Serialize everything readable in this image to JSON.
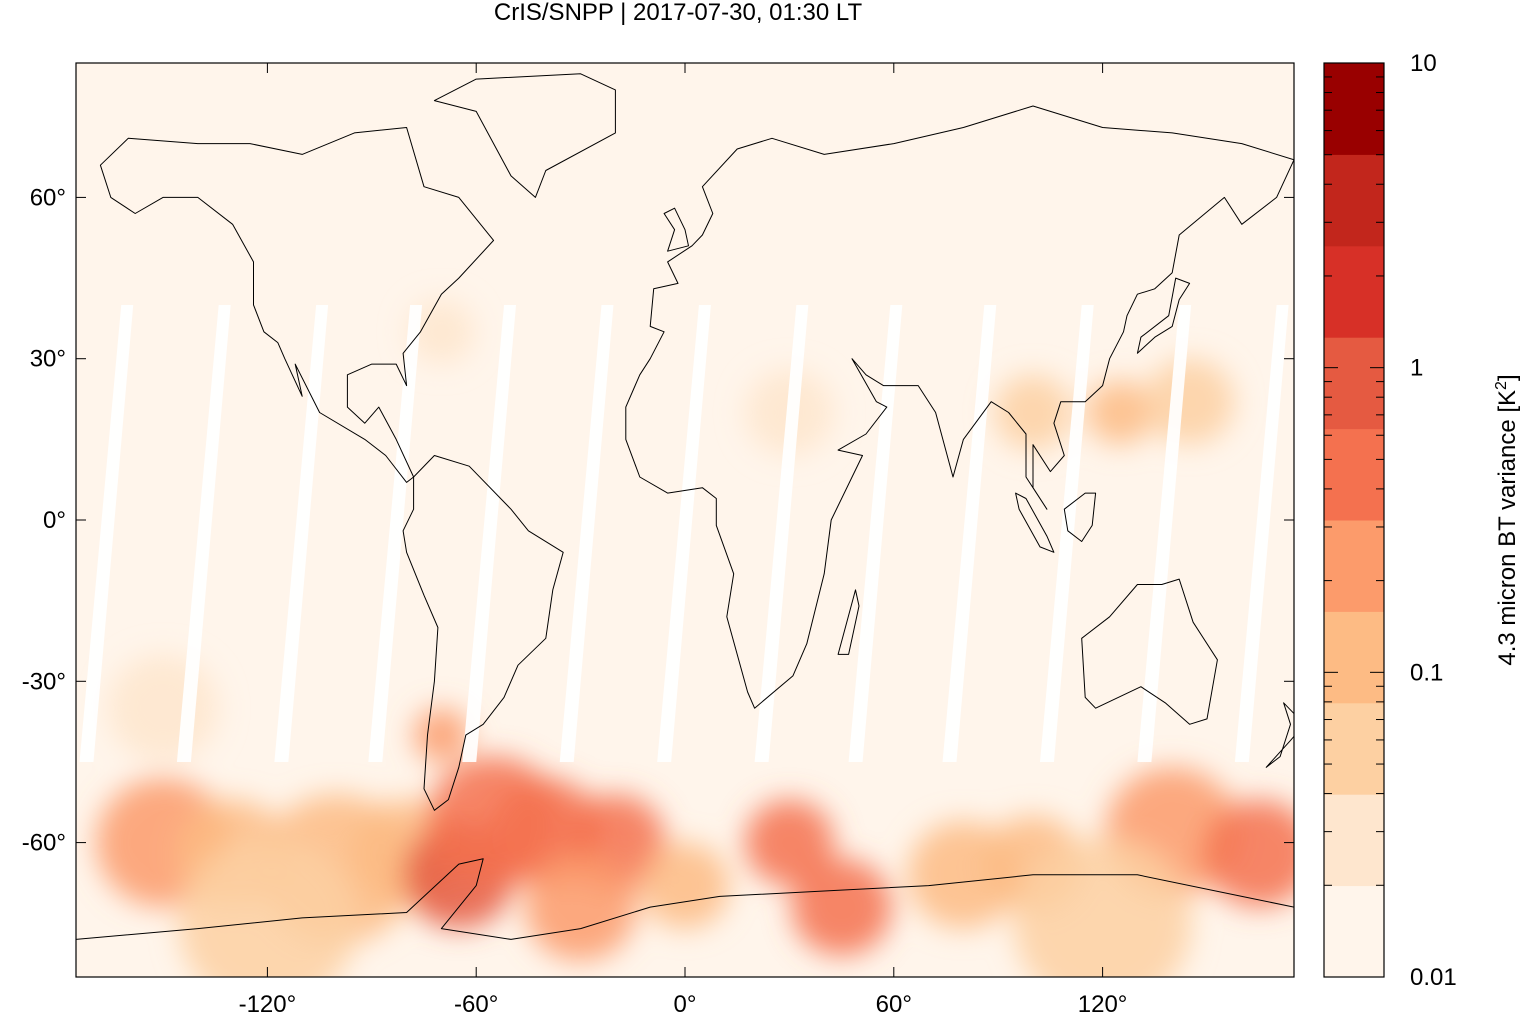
{
  "title": "CrIS/SNPP | 2017-07-30, 01:30 LT",
  "map": {
    "lon_range": [
      -175,
      175
    ],
    "lat_range": [
      -85,
      85
    ],
    "x_ticks": [
      {
        "value": -120,
        "label": "-120°"
      },
      {
        "value": -60,
        "label": "-60°"
      },
      {
        "value": 0,
        "label": "0°"
      },
      {
        "value": 60,
        "label": "60°"
      },
      {
        "value": 120,
        "label": "120°"
      }
    ],
    "y_ticks": [
      {
        "value": 60,
        "label": "60°"
      },
      {
        "value": 30,
        "label": "30°"
      },
      {
        "value": 0,
        "label": "0°"
      },
      {
        "value": -30,
        "label": "-30°"
      },
      {
        "value": -60,
        "label": "-60°"
      }
    ],
    "swath_gap_lons": [
      -168,
      -140,
      -112,
      -85,
      -58,
      -30,
      -2,
      26,
      53,
      80,
      108,
      136,
      164
    ],
    "blobs": [
      {
        "lon": -150,
        "lat": -60,
        "r": 12,
        "level": 4
      },
      {
        "lon": -130,
        "lat": -62,
        "r": 10,
        "level": 3
      },
      {
        "lon": -100,
        "lat": -65,
        "r": 14,
        "level": 3
      },
      {
        "lon": -80,
        "lat": -62,
        "r": 10,
        "level": 3
      },
      {
        "lon": -65,
        "lat": -66,
        "r": 10,
        "level": 6
      },
      {
        "lon": -55,
        "lat": -56,
        "r": 12,
        "level": 5
      },
      {
        "lon": -40,
        "lat": -58,
        "r": 10,
        "level": 5
      },
      {
        "lon": -20,
        "lat": -60,
        "r": 9,
        "level": 5
      },
      {
        "lon": -30,
        "lat": -72,
        "r": 10,
        "level": 4
      },
      {
        "lon": 0,
        "lat": -68,
        "r": 8,
        "level": 3
      },
      {
        "lon": 30,
        "lat": -60,
        "r": 8,
        "level": 5
      },
      {
        "lon": 45,
        "lat": -72,
        "r": 9,
        "level": 5
      },
      {
        "lon": 80,
        "lat": -66,
        "r": 10,
        "level": 3
      },
      {
        "lon": 100,
        "lat": -64,
        "r": 9,
        "level": 3
      },
      {
        "lon": 140,
        "lat": -58,
        "r": 12,
        "level": 4
      },
      {
        "lon": 165,
        "lat": -62,
        "r": 10,
        "level": 5
      },
      {
        "lon": -120,
        "lat": -75,
        "r": 16,
        "level": 2
      },
      {
        "lon": 120,
        "lat": -75,
        "r": 16,
        "level": 2
      },
      {
        "lon": -70,
        "lat": -40,
        "r": 5,
        "level": 4
      },
      {
        "lon": 125,
        "lat": 20,
        "r": 6,
        "level": 3
      },
      {
        "lon": 145,
        "lat": 22,
        "r": 8,
        "level": 2
      },
      {
        "lon": 100,
        "lat": 20,
        "r": 7,
        "level": 2
      },
      {
        "lon": -70,
        "lat": 35,
        "r": 6,
        "level": 1
      },
      {
        "lon": 30,
        "lat": 20,
        "r": 8,
        "level": 1
      },
      {
        "lon": -150,
        "lat": -35,
        "r": 10,
        "level": 1
      }
    ],
    "continents": [
      {
        "name": "north-america",
        "points": [
          [
            -165,
            60
          ],
          [
            -168,
            66
          ],
          [
            -160,
            71
          ],
          [
            -140,
            70
          ],
          [
            -125,
            70
          ],
          [
            -110,
            68
          ],
          [
            -95,
            72
          ],
          [
            -80,
            73
          ],
          [
            -75,
            62
          ],
          [
            -65,
            60
          ],
          [
            -55,
            52
          ],
          [
            -65,
            45
          ],
          [
            -70,
            42
          ],
          [
            -76,
            35
          ],
          [
            -81,
            31
          ],
          [
            -80,
            25
          ],
          [
            -83,
            29
          ],
          [
            -90,
            29
          ],
          [
            -97,
            27
          ],
          [
            -97,
            21
          ],
          [
            -92,
            18
          ],
          [
            -88,
            21
          ],
          [
            -83,
            15
          ],
          [
            -78,
            8
          ],
          [
            -80,
            7
          ],
          [
            -86,
            12
          ],
          [
            -92,
            15
          ],
          [
            -105,
            20
          ],
          [
            -112,
            29
          ],
          [
            -110,
            23
          ],
          [
            -115,
            30
          ],
          [
            -117,
            33
          ],
          [
            -121,
            35
          ],
          [
            -124,
            40
          ],
          [
            -124,
            48
          ],
          [
            -130,
            55
          ],
          [
            -140,
            60
          ],
          [
            -150,
            60
          ],
          [
            -158,
            57
          ],
          [
            -165,
            60
          ]
        ]
      },
      {
        "name": "greenland",
        "points": [
          [
            -72,
            78
          ],
          [
            -60,
            82
          ],
          [
            -30,
            83
          ],
          [
            -20,
            80
          ],
          [
            -20,
            72
          ],
          [
            -40,
            65
          ],
          [
            -43,
            60
          ],
          [
            -50,
            64
          ],
          [
            -55,
            70
          ],
          [
            -60,
            76
          ],
          [
            -72,
            78
          ]
        ]
      },
      {
        "name": "south-america",
        "points": [
          [
            -78,
            8
          ],
          [
            -72,
            12
          ],
          [
            -62,
            10
          ],
          [
            -50,
            2
          ],
          [
            -45,
            -2
          ],
          [
            -35,
            -6
          ],
          [
            -38,
            -13
          ],
          [
            -40,
            -22
          ],
          [
            -48,
            -27
          ],
          [
            -52,
            -33
          ],
          [
            -58,
            -38
          ],
          [
            -63,
            -40
          ],
          [
            -65,
            -46
          ],
          [
            -68,
            -52
          ],
          [
            -72,
            -54
          ],
          [
            -75,
            -50
          ],
          [
            -74,
            -40
          ],
          [
            -72,
            -30
          ],
          [
            -71,
            -20
          ],
          [
            -75,
            -14
          ],
          [
            -80,
            -6
          ],
          [
            -81,
            -2
          ],
          [
            -78,
            2
          ],
          [
            -78,
            8
          ]
        ]
      },
      {
        "name": "eurasia-africa",
        "points": [
          [
            -10,
            36
          ],
          [
            -9,
            43
          ],
          [
            -2,
            44
          ],
          [
            -5,
            48
          ],
          [
            2,
            51
          ],
          [
            5,
            53
          ],
          [
            8,
            57
          ],
          [
            5,
            62
          ],
          [
            15,
            69
          ],
          [
            25,
            71
          ],
          [
            40,
            68
          ],
          [
            60,
            70
          ],
          [
            80,
            73
          ],
          [
            100,
            77
          ],
          [
            120,
            73
          ],
          [
            140,
            72
          ],
          [
            160,
            70
          ],
          [
            175,
            67
          ],
          [
            170,
            60
          ],
          [
            160,
            55
          ],
          [
            155,
            60
          ],
          [
            142,
            53
          ],
          [
            140,
            46
          ],
          [
            135,
            43
          ],
          [
            130,
            42
          ],
          [
            127,
            38
          ],
          [
            126,
            35
          ],
          [
            122,
            30
          ],
          [
            120,
            25
          ],
          [
            115,
            22
          ],
          [
            108,
            22
          ],
          [
            106,
            18
          ],
          [
            109,
            12
          ],
          [
            105,
            9
          ],
          [
            100,
            14
          ],
          [
            100,
            6
          ],
          [
            104,
            2
          ],
          [
            98,
            8
          ],
          [
            98,
            16
          ],
          [
            93,
            20
          ],
          [
            88,
            22
          ],
          [
            80,
            15
          ],
          [
            77,
            8
          ],
          [
            72,
            20
          ],
          [
            67,
            25
          ],
          [
            57,
            25
          ],
          [
            52,
            27
          ],
          [
            48,
            30
          ],
          [
            55,
            22
          ],
          [
            58,
            21
          ],
          [
            52,
            16
          ],
          [
            44,
            13
          ],
          [
            51,
            12
          ],
          [
            42,
            0
          ],
          [
            40,
            -10
          ],
          [
            35,
            -23
          ],
          [
            31,
            -29
          ],
          [
            20,
            -35
          ],
          [
            18,
            -32
          ],
          [
            12,
            -18
          ],
          [
            14,
            -10
          ],
          [
            9,
            -1
          ],
          [
            9,
            4
          ],
          [
            5,
            6
          ],
          [
            -5,
            5
          ],
          [
            -13,
            8
          ],
          [
            -17,
            15
          ],
          [
            -17,
            21
          ],
          [
            -13,
            27
          ],
          [
            -10,
            30
          ],
          [
            -6,
            35
          ],
          [
            -10,
            36
          ]
        ]
      },
      {
        "name": "australia",
        "points": [
          [
            114,
            -22
          ],
          [
            122,
            -18
          ],
          [
            130,
            -12
          ],
          [
            137,
            -12
          ],
          [
            142,
            -11
          ],
          [
            146,
            -19
          ],
          [
            153,
            -26
          ],
          [
            150,
            -37
          ],
          [
            145,
            -38
          ],
          [
            138,
            -34
          ],
          [
            131,
            -31
          ],
          [
            118,
            -35
          ],
          [
            115,
            -33
          ],
          [
            114,
            -22
          ]
        ]
      },
      {
        "name": "antarctica",
        "points": [
          [
            -175,
            -78
          ],
          [
            -140,
            -76
          ],
          [
            -110,
            -74
          ],
          [
            -80,
            -73
          ],
          [
            -65,
            -64
          ],
          [
            -58,
            -63
          ],
          [
            -60,
            -68
          ],
          [
            -70,
            -76
          ],
          [
            -50,
            -78
          ],
          [
            -30,
            -76
          ],
          [
            -10,
            -72
          ],
          [
            10,
            -70
          ],
          [
            40,
            -69
          ],
          [
            70,
            -68
          ],
          [
            100,
            -66
          ],
          [
            130,
            -66
          ],
          [
            160,
            -70
          ],
          [
            175,
            -72
          ],
          [
            175,
            -85
          ],
          [
            -175,
            -85
          ],
          [
            -175,
            -78
          ]
        ]
      },
      {
        "name": "madagascar",
        "points": [
          [
            44,
            -25
          ],
          [
            49,
            -13
          ],
          [
            50,
            -16
          ],
          [
            47,
            -25
          ],
          [
            44,
            -25
          ]
        ]
      },
      {
        "name": "japan",
        "points": [
          [
            130,
            31
          ],
          [
            135,
            34
          ],
          [
            140,
            36
          ],
          [
            142,
            41
          ],
          [
            145,
            44
          ],
          [
            141,
            45
          ],
          [
            139,
            38
          ],
          [
            131,
            34
          ],
          [
            130,
            31
          ]
        ]
      },
      {
        "name": "britain",
        "points": [
          [
            -5,
            50
          ],
          [
            1,
            51
          ],
          [
            0,
            54
          ],
          [
            -3,
            58
          ],
          [
            -6,
            57
          ],
          [
            -3,
            54
          ],
          [
            -5,
            50
          ]
        ]
      },
      {
        "name": "new-zealand",
        "points": [
          [
            172,
            -34
          ],
          [
            178,
            -38
          ],
          [
            174,
            -41
          ],
          [
            167,
            -46
          ],
          [
            171,
            -44
          ],
          [
            174,
            -38
          ],
          [
            172,
            -34
          ]
        ]
      },
      {
        "name": "borneo",
        "points": [
          [
            109,
            2
          ],
          [
            115,
            5
          ],
          [
            118,
            5
          ],
          [
            117,
            -1
          ],
          [
            114,
            -4
          ],
          [
            110,
            -2
          ],
          [
            109,
            2
          ]
        ]
      },
      {
        "name": "sumatra",
        "points": [
          [
            95,
            5
          ],
          [
            98,
            4
          ],
          [
            104,
            -3
          ],
          [
            106,
            -6
          ],
          [
            102,
            -5
          ],
          [
            96,
            2
          ],
          [
            95,
            5
          ]
        ]
      }
    ]
  },
  "colorbar": {
    "label_text": "4.3 micron BT variance [K",
    "label_exp": "2",
    "label_close": "]",
    "scale": "log",
    "range": [
      0.01,
      10
    ],
    "tick_labels": [
      {
        "value": 10,
        "label": "10"
      },
      {
        "value": 1,
        "label": "1"
      },
      {
        "value": 0.1,
        "label": "0.1"
      },
      {
        "value": 0.01,
        "label": "0.01"
      }
    ],
    "colors": [
      "#fff5eb",
      "#fee6ce",
      "#fdd0a2",
      "#fdbb84",
      "#fc9b6b",
      "#f4714f",
      "#e55a41",
      "#d73027",
      "#c2261c",
      "#990000"
    ]
  }
}
